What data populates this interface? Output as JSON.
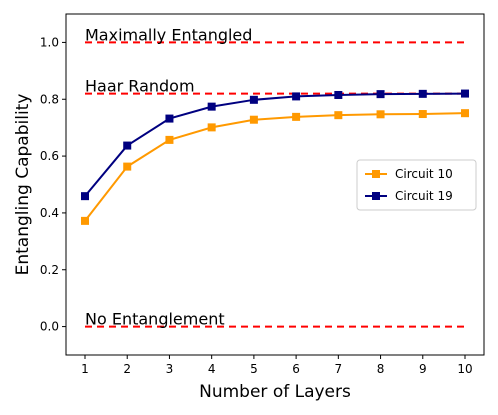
{
  "chart_data": {
    "type": "line",
    "xlabel": "Number of Layers",
    "ylabel": "Entangling Capability",
    "x": [
      1,
      2,
      3,
      4,
      5,
      6,
      7,
      8,
      9,
      10
    ],
    "xlim": [
      0.55,
      10.45
    ],
    "ylim": [
      -0.1,
      1.1
    ],
    "xticks": [
      "1",
      "2",
      "3",
      "4",
      "5",
      "6",
      "7",
      "8",
      "9",
      "10"
    ],
    "yticks": [
      "0.0",
      "0.2",
      "0.4",
      "0.6",
      "0.8",
      "1.0"
    ],
    "grid": false,
    "legend_position": "center-right",
    "series": [
      {
        "name": "Circuit 10",
        "color": "#ff9900",
        "marker": "square",
        "values": [
          0.372,
          0.563,
          0.657,
          0.701,
          0.728,
          0.738,
          0.744,
          0.747,
          0.748,
          0.751
        ]
      },
      {
        "name": "Circuit 19",
        "color": "#000080",
        "marker": "square",
        "values": [
          0.459,
          0.637,
          0.732,
          0.774,
          0.798,
          0.81,
          0.815,
          0.818,
          0.819,
          0.82
        ]
      }
    ],
    "reference_lines": [
      {
        "label": "Maximally Entangled",
        "y": 1.0,
        "color": "#ff0000",
        "style": "dashed"
      },
      {
        "label": "Haar Random",
        "y": 0.82,
        "color": "#ff0000",
        "style": "dashed"
      },
      {
        "label": "No Entanglement",
        "y": 0.0,
        "color": "#ff0000",
        "style": "dashed"
      }
    ]
  }
}
